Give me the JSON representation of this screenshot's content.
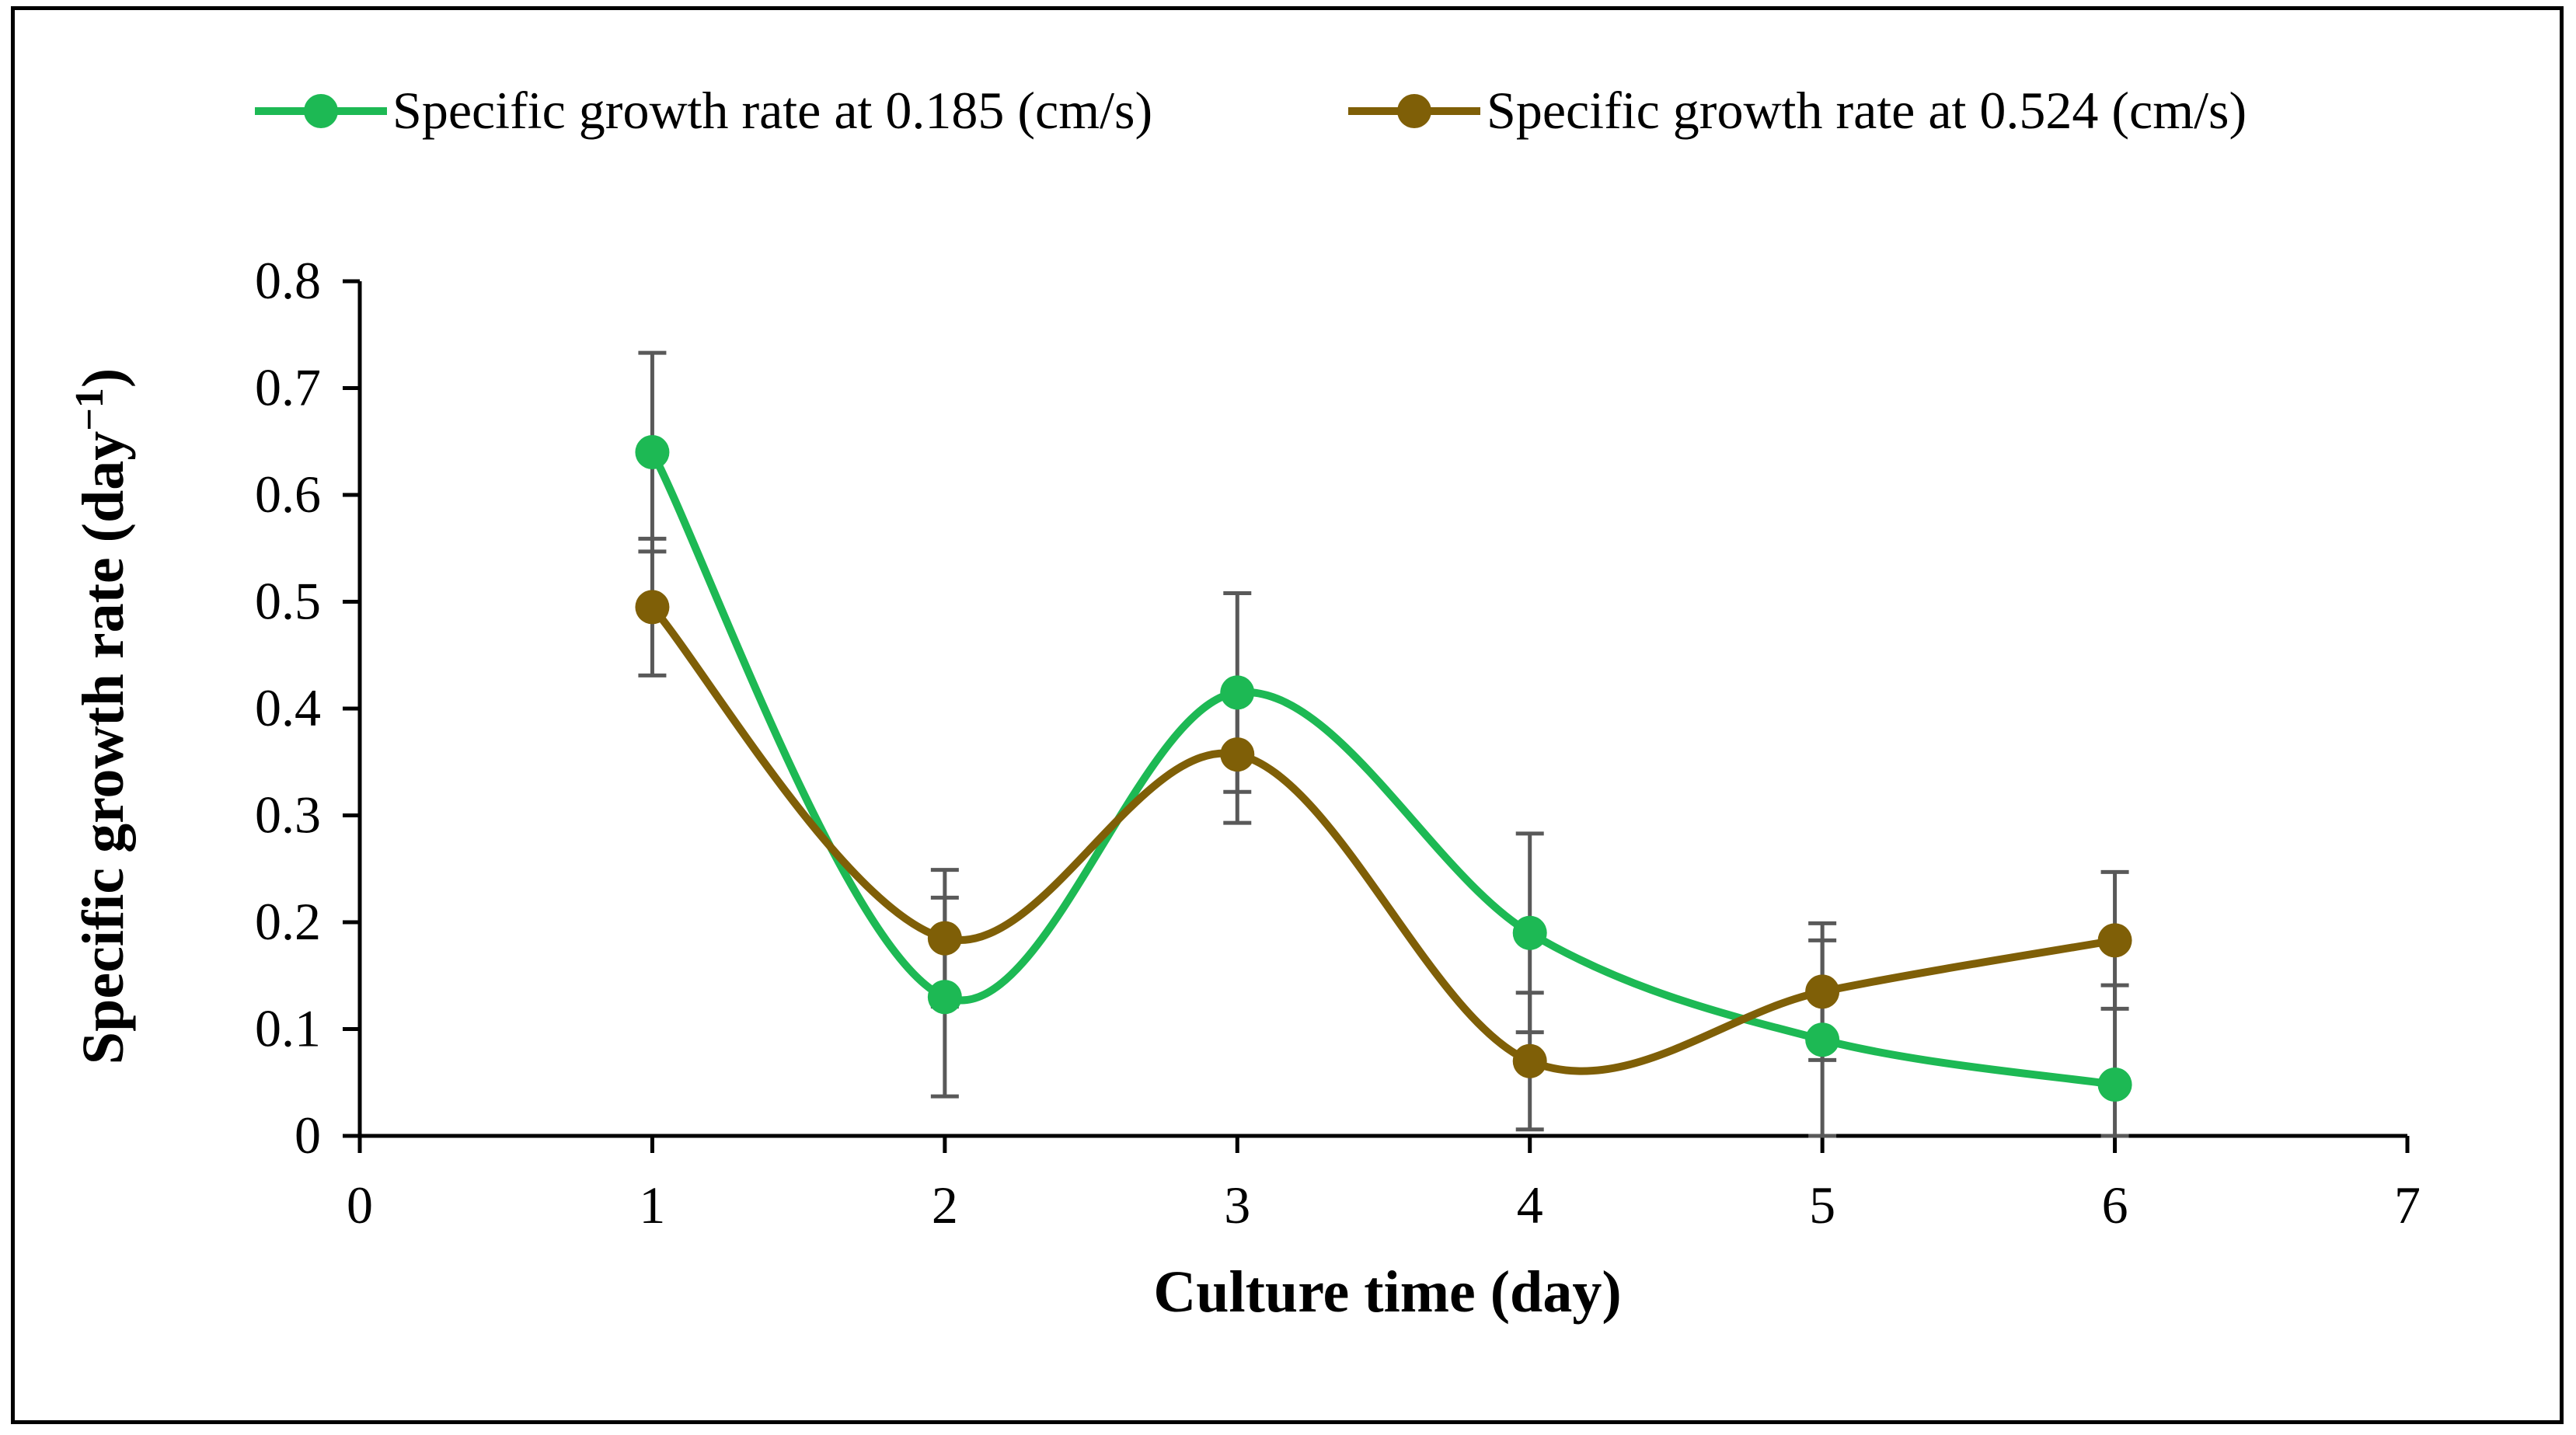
{
  "chart_data": {
    "type": "line",
    "smooth": true,
    "title": "",
    "xlabel": "Culture time (day)",
    "ylabel": "Specific growth rate (day",
    "ylabel_superscript": "−1",
    "ylabel_close": ")",
    "xlim": [
      0,
      7
    ],
    "ylim": [
      0,
      0.8
    ],
    "xticks": [
      0,
      1,
      2,
      3,
      4,
      5,
      6,
      7
    ],
    "yticks": [
      0,
      0.1,
      0.2,
      0.3,
      0.4,
      0.5,
      0.6,
      0.7,
      0.8
    ],
    "xtick_labels": [
      "0",
      "1",
      "2",
      "3",
      "4",
      "5",
      "6",
      "7"
    ],
    "ytick_labels": [
      "0",
      "0.1",
      "0.2",
      "0.3",
      "0.4",
      "0.5",
      "0.6",
      "0.7",
      "0.8"
    ],
    "grid": false,
    "legend_position": "top",
    "x": [
      1,
      2,
      3,
      4,
      5,
      6
    ],
    "series": [
      {
        "name": "Specific growth rate at 0.185 (cm/s)",
        "color": "#1db954",
        "values": [
          0.64,
          0.13,
          0.415,
          0.19,
          0.09,
          0.048
        ],
        "error": [
          0.093,
          0.093,
          0.093,
          0.093,
          0.093,
          0.093
        ]
      },
      {
        "name": "Specific growth rate at 0.524 (cm/s)",
        "color": "#7f5f07",
        "values": [
          0.495,
          0.185,
          0.357,
          0.07,
          0.135,
          0.183
        ],
        "error": [
          0.064,
          0.064,
          0.064,
          0.064,
          0.064,
          0.064
        ]
      }
    ],
    "error_bar_color": "#595959",
    "axis_color": "#000000"
  }
}
